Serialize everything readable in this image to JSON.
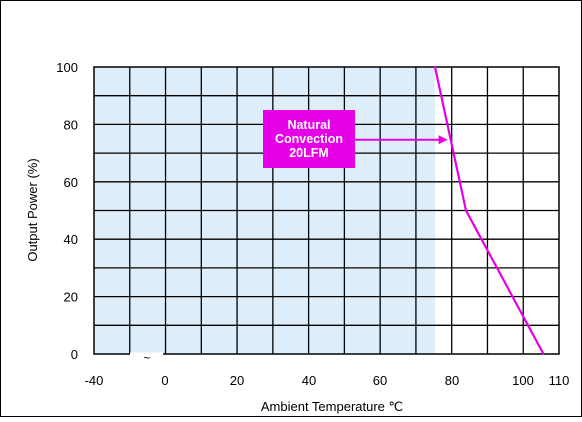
{
  "chart_data": {
    "type": "line",
    "title": "",
    "xlabel": "Ambient Temperature ℃",
    "ylabel": "Output Power  (%)",
    "xlim": [
      -40,
      110
    ],
    "ylim": [
      0,
      100
    ],
    "x_ticks": [
      "-40",
      "0",
      "20",
      "40",
      "60",
      "80",
      "100",
      "110"
    ],
    "y_ticks": [
      "0",
      "20",
      "40",
      "60",
      "80",
      "100"
    ],
    "grid": true,
    "shaded_region": {
      "x_from": -40,
      "x_to": 70,
      "color": "#ddeefa"
    },
    "series": [
      {
        "name": "",
        "color": "#e600e6",
        "points": [
          [
            70,
            100
          ],
          [
            80,
            50
          ],
          [
            90,
            30
          ],
          [
            100,
            10
          ],
          [
            105,
            0
          ]
        ]
      }
    ],
    "axis_break_symbol": "~",
    "annotation": {
      "lines": [
        "Natural",
        "Convection",
        "20LFM"
      ],
      "color": "#e600e6",
      "arrow_target": [
        76,
        75
      ]
    }
  }
}
